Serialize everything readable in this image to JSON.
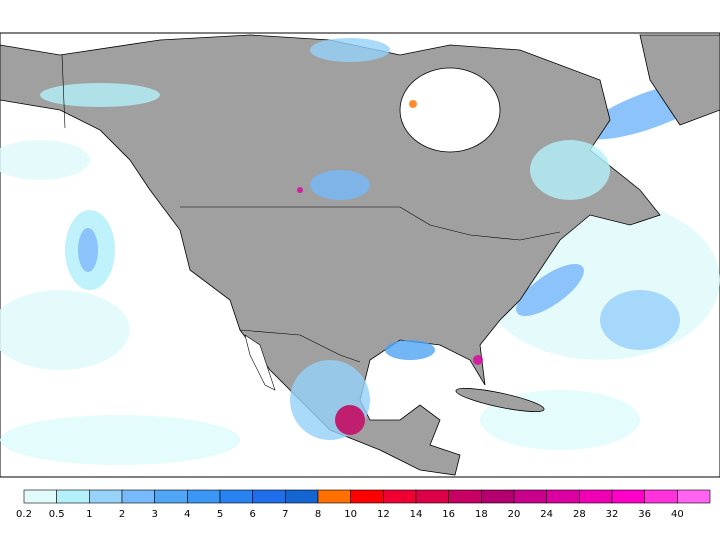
{
  "legend": {
    "labels": [
      0.2,
      0.5,
      1,
      2,
      3,
      4,
      5,
      6,
      7,
      8,
      10,
      12,
      14,
      16,
      18,
      20,
      24,
      28,
      32,
      36,
      40
    ],
    "colors": [
      "#e1fbfb",
      "#b4f0fa",
      "#96d2fa",
      "#78b9fa",
      "#50a5f5",
      "#3c96f5",
      "#2882f0",
      "#1e6eeb",
      "#1464d2",
      "#ff7000",
      "#ff0000",
      "#f00032",
      "#dc0046",
      "#c80064",
      "#b4006e",
      "#c8008c",
      "#dc00a0",
      "#f000b4",
      "#ff00c8",
      "#ff32dc",
      "#ff64f0"
    ]
  }
}
